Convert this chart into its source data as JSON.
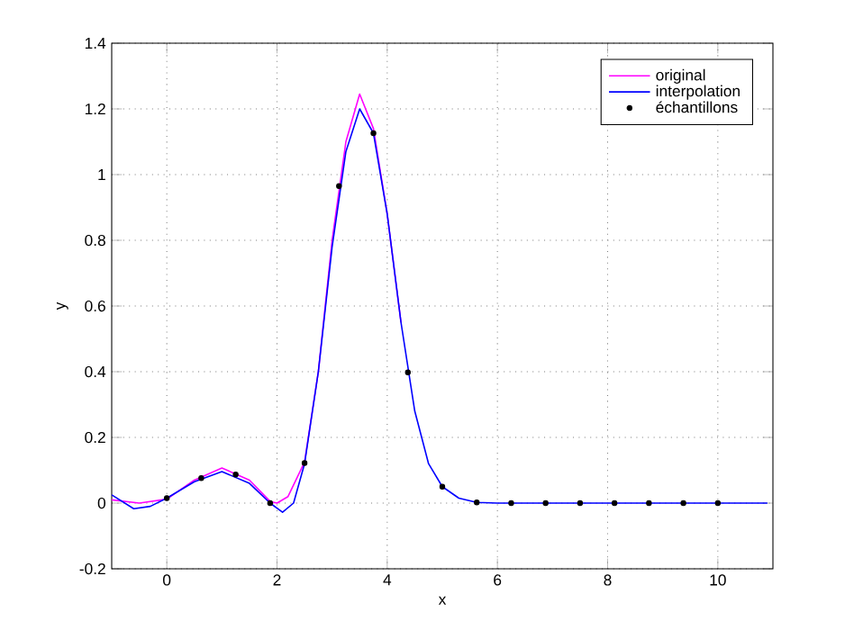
{
  "chart_data": {
    "type": "line",
    "xlabel": "x",
    "ylabel": "y",
    "xlim": [
      -1,
      11
    ],
    "ylim": [
      -0.2,
      1.4
    ],
    "xticks": [
      0,
      2,
      4,
      6,
      8,
      10
    ],
    "yticks": [
      -0.2,
      0,
      0.2,
      0.4,
      0.6,
      0.8,
      1,
      1.2,
      1.4
    ],
    "grid": true,
    "legend": "top right",
    "series": [
      {
        "name": "original",
        "marker": "none",
        "color": "#ff00ff",
        "x": [
          -1,
          -0.5,
          0,
          0.5,
          1.0,
          1.5,
          1.875,
          2.0,
          2.2,
          2.5,
          2.75,
          3.0,
          3.25,
          3.5,
          3.75,
          4.0,
          4.25
        ],
        "values": [
          0.01,
          0.0,
          0.012,
          0.07,
          0.107,
          0.07,
          0.005,
          0.0,
          0.02,
          0.125,
          0.4,
          0.8,
          1.1,
          1.245,
          1.14,
          0.88,
          0.55
        ]
      },
      {
        "name": "interpolation",
        "marker": "none",
        "color": "#0000ff",
        "x": [
          -1,
          -0.6,
          -0.3,
          0,
          0.5,
          1.0,
          1.5,
          1.875,
          2.1,
          2.3,
          2.5,
          2.75,
          3.0,
          3.25,
          3.5,
          3.75,
          4.0,
          4.25,
          4.5,
          4.75,
          5.0,
          5.3,
          5.625,
          6,
          10.9
        ],
        "values": [
          0.025,
          -0.017,
          -0.01,
          0.015,
          0.065,
          0.096,
          0.06,
          0.0,
          -0.028,
          0.0,
          0.12,
          0.4,
          0.78,
          1.07,
          1.2,
          1.126,
          0.88,
          0.55,
          0.28,
          0.12,
          0.05,
          0.015,
          0.002,
          0,
          0
        ]
      },
      {
        "name": "échantillons",
        "type": "scatter",
        "marker": "circle",
        "color": "#000000",
        "x": [
          0,
          0.625,
          1.25,
          1.875,
          2.5,
          3.125,
          3.75,
          4.375,
          5,
          5.625,
          6.25,
          6.875,
          7.5,
          8.125,
          8.75,
          9.375,
          10
        ],
        "values": [
          0.015,
          0.076,
          0.087,
          0,
          0.122,
          0.965,
          1.126,
          0.398,
          0.05,
          0.002,
          0,
          0,
          0,
          0,
          0,
          0,
          0
        ]
      }
    ]
  }
}
